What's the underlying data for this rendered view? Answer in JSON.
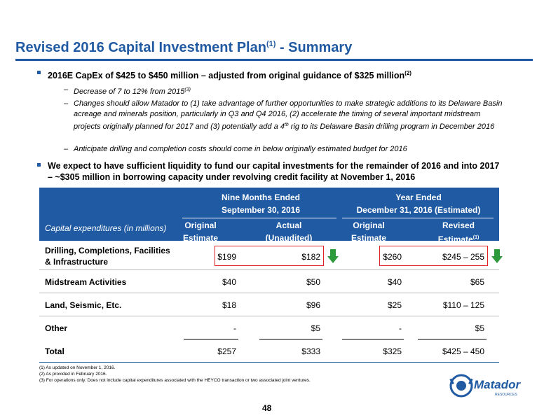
{
  "title": {
    "text": "Revised 2016 Capital Investment Plan",
    "sup": "(1)",
    "suffix": " - Summary"
  },
  "bullet1": {
    "text": "2016E CapEx of $425 to $450 million – adjusted from original guidance of $325 million",
    "sup": "(2)"
  },
  "sub1": {
    "text": "Decrease of 7 to 12% from 2015",
    "sup": "(3)"
  },
  "sub2": {
    "text_a": "Changes should allow Matador to (1) take advantage of further opportunities to make strategic additions to its Delaware Basin acreage and minerals position, particularly in Q3 and Q4 2016, (2) accelerate the timing of several important midstream projects originally planned for 2017 and (3) potentially add a 4",
    "sup": "th",
    "text_b": " rig to its Delaware Basin drilling program in December 2016"
  },
  "sub3": {
    "text": "Anticipate drilling and completion costs should come in below originally estimated budget for 2016"
  },
  "bullet2": {
    "text": "We expect to have sufficient liquidity to fund our capital investments for the remainder of 2016 and into 2017 – ~$305 million in borrowing capacity under revolving credit facility at November 1, 2016"
  },
  "table": {
    "group1": {
      "line1": "Nine Months Ended",
      "line2": "September 30, 2016"
    },
    "group2": {
      "line1": "Year Ended",
      "line2": "December 31, 2016 (Estimated)"
    },
    "cap_label": "Capital expenditures (in millions)",
    "cols": [
      {
        "line1": "Original",
        "line2": "Estimate",
        "sup": ""
      },
      {
        "line1": "Actual",
        "line2": "(Unaudited)",
        "sup": ""
      },
      {
        "line1": "Original",
        "line2": "Estimate",
        "sup": ""
      },
      {
        "line1": "Revised",
        "line2": "Estimate",
        "sup": "(1)"
      }
    ],
    "rows": [
      {
        "label1": "Drilling, Completions, Facilities",
        "label2": "& Infrastructure",
        "values": [
          "$199",
          "$182",
          "$260",
          "$245 – 255"
        ]
      },
      {
        "label1": "Midstream Activities",
        "values": [
          "$40",
          "$50",
          "$40",
          "$65"
        ]
      },
      {
        "label1": "Land, Seismic, Etc.",
        "values": [
          "$18",
          "$96",
          "$25",
          "$110 – 125"
        ]
      },
      {
        "label1": "Other",
        "values": [
          "-",
          "$5",
          "-",
          "$5"
        ]
      },
      {
        "label1": "Total",
        "values": [
          "$257",
          "$333",
          "$325",
          "$425 – 450"
        ]
      }
    ]
  },
  "footnotes": [
    "(1)  As updated on November 1, 2016.",
    "(2)  As provided in February 2016.",
    "(3)  For operations only.  Does not include capital expenditures associated with the HEYCO transaction or two associated joint ventures."
  ],
  "page_number": "48",
  "logo": {
    "name": "Matador",
    "sub": "RESOURCES"
  },
  "colors": {
    "brand_blue": "#1f5aa3",
    "highlight_red": "#e21f26",
    "arrow_green": "#2e9a3c"
  }
}
